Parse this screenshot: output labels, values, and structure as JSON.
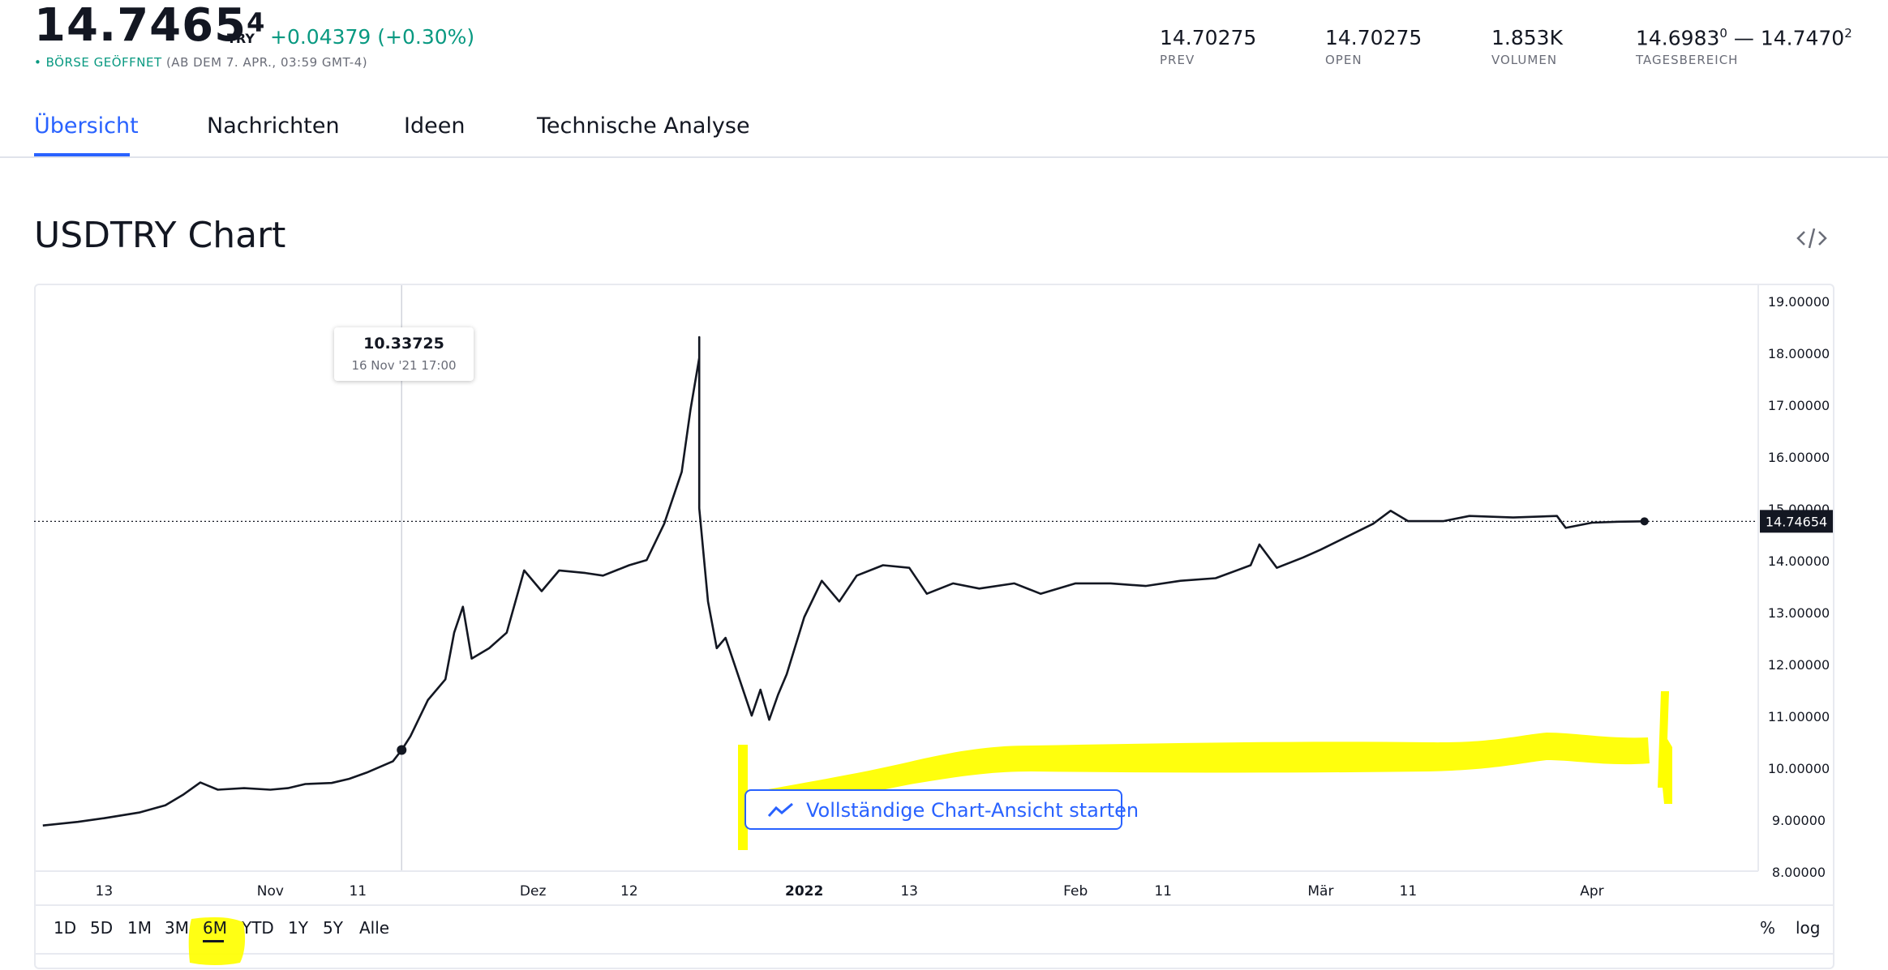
{
  "header": {
    "price_main": "14.7465",
    "price_sup": "4",
    "currency": "TRY",
    "change": "+0.04379 (+0.30%)",
    "market_status": "• BÖRSE GEÖFFNET",
    "market_time": "(AB DEM 7. APR., 03:59 GMT-4)",
    "stats": [
      {
        "value": "14.70275",
        "label": "PREV"
      },
      {
        "value": "14.70275",
        "label": "OPEN"
      },
      {
        "value": "1.853K",
        "label": "VOLUMEN"
      },
      {
        "value": "14.6983",
        "value_sup": "0",
        "value2": " — 14.7470",
        "value2_sup": "2",
        "label": "TAGESBEREICH"
      }
    ]
  },
  "tabs": [
    {
      "label": "Übersicht",
      "active": true
    },
    {
      "label": "Nachrichten"
    },
    {
      "label": "Ideen"
    },
    {
      "label": "Technische Analyse"
    }
  ],
  "chart_section": {
    "title": "USDTRY Chart",
    "embed_icon": "code-embed-icon",
    "full_chart_button": "Vollständige Chart-Ansicht starten",
    "full_chart_icon": "trend-line-icon"
  },
  "tooltip": {
    "value": "10.33725",
    "date": "16 Nov '21   17:00"
  },
  "range_buttons": [
    "1D",
    "5D",
    "1M",
    "3M",
    "6M",
    "YTD",
    "1Y",
    "5Y",
    "Alle"
  ],
  "range_active": "6M",
  "scale_buttons": [
    "%",
    "log"
  ],
  "colors": {
    "accent": "#2962ff",
    "positive": "#089981",
    "line": "#131722",
    "highlight": "#ffff00"
  },
  "chart_data": {
    "type": "line",
    "series": [
      {
        "name": "USDTRY",
        "points": [
          [
            "2021-10-06",
            8.88
          ],
          [
            "2021-10-10",
            8.95
          ],
          [
            "2021-10-13",
            9.02
          ],
          [
            "2021-10-17",
            9.13
          ],
          [
            "2021-10-20",
            9.27
          ],
          [
            "2021-10-22",
            9.47
          ],
          [
            "2021-10-24",
            9.71
          ],
          [
            "2021-10-26",
            9.57
          ],
          [
            "2021-10-29",
            9.6
          ],
          [
            "2021-11-01",
            9.57
          ],
          [
            "2021-11-03",
            9.6
          ],
          [
            "2021-11-05",
            9.68
          ],
          [
            "2021-11-08",
            9.7
          ],
          [
            "2021-11-10",
            9.78
          ],
          [
            "2021-11-12",
            9.9
          ],
          [
            "2021-11-15",
            10.12
          ],
          [
            "2021-11-16",
            10.33725
          ],
          [
            "2021-11-17",
            10.6
          ],
          [
            "2021-11-18",
            10.95
          ],
          [
            "2021-11-19",
            11.3
          ],
          [
            "2021-11-21",
            11.7
          ],
          [
            "2021-11-22",
            12.6
          ],
          [
            "2021-11-23",
            13.1
          ],
          [
            "2021-11-24",
            12.1
          ],
          [
            "2021-11-26",
            12.3
          ],
          [
            "2021-11-28",
            12.6
          ],
          [
            "2021-11-30",
            13.8
          ],
          [
            "2021-12-02",
            13.4
          ],
          [
            "2021-12-04",
            13.8
          ],
          [
            "2021-12-07",
            13.75
          ],
          [
            "2021-12-09",
            13.7
          ],
          [
            "2021-12-12",
            13.9
          ],
          [
            "2021-12-14",
            14.0
          ],
          [
            "2021-12-16",
            14.7
          ],
          [
            "2021-12-18",
            15.7
          ],
          [
            "2021-12-19",
            16.9
          ],
          [
            "2021-12-20",
            17.9
          ],
          [
            "2021-12-20",
            18.3
          ],
          [
            "2021-12-20",
            15.0
          ],
          [
            "2021-12-21",
            13.2
          ],
          [
            "2021-12-22",
            12.3
          ],
          [
            "2021-12-23",
            12.5
          ],
          [
            "2021-12-24",
            12.0
          ],
          [
            "2021-12-26",
            11.0
          ],
          [
            "2021-12-27",
            11.5
          ],
          [
            "2021-12-28",
            10.92
          ],
          [
            "2021-12-29",
            11.4
          ],
          [
            "2021-12-30",
            11.8
          ],
          [
            "2022-01-01",
            12.9
          ],
          [
            "2022-01-03",
            13.6
          ],
          [
            "2022-01-05",
            13.2
          ],
          [
            "2022-01-07",
            13.7
          ],
          [
            "2022-01-10",
            13.9
          ],
          [
            "2022-01-13",
            13.85
          ],
          [
            "2022-01-15",
            13.35
          ],
          [
            "2022-01-18",
            13.55
          ],
          [
            "2022-01-21",
            13.45
          ],
          [
            "2022-01-25",
            13.55
          ],
          [
            "2022-01-28",
            13.35
          ],
          [
            "2022-02-01",
            13.55
          ],
          [
            "2022-02-05",
            13.55
          ],
          [
            "2022-02-09",
            13.5
          ],
          [
            "2022-02-13",
            13.6
          ],
          [
            "2022-02-17",
            13.65
          ],
          [
            "2022-02-21",
            13.9
          ],
          [
            "2022-02-22",
            14.3
          ],
          [
            "2022-02-24",
            13.85
          ],
          [
            "2022-02-27",
            14.05
          ],
          [
            "2022-03-01",
            14.2
          ],
          [
            "2022-03-04",
            14.45
          ],
          [
            "2022-03-07",
            14.7
          ],
          [
            "2022-03-09",
            14.95
          ],
          [
            "2022-03-11",
            14.75
          ],
          [
            "2022-03-15",
            14.75
          ],
          [
            "2022-03-18",
            14.85
          ],
          [
            "2022-03-23",
            14.82
          ],
          [
            "2022-03-28",
            14.85
          ],
          [
            "2022-03-29",
            14.62
          ],
          [
            "2022-04-01",
            14.72
          ],
          [
            "2022-04-04",
            14.74
          ],
          [
            "2022-04-07",
            14.74654
          ]
        ]
      }
    ],
    "current_value": "14.74654",
    "x_tick_labels": [
      {
        "date": "2021-10-13",
        "label": "13",
        "bold": false
      },
      {
        "date": "2021-11-01",
        "label": "Nov",
        "bold": false
      },
      {
        "date": "2021-11-11",
        "label": "11",
        "bold": false
      },
      {
        "date": "2021-12-01",
        "label": "Dez",
        "bold": false
      },
      {
        "date": "2021-12-12",
        "label": "12",
        "bold": false
      },
      {
        "date": "2022-01-01",
        "label": "2022",
        "bold": true
      },
      {
        "date": "2022-01-13",
        "label": "13",
        "bold": false
      },
      {
        "date": "2022-02-01",
        "label": "Feb",
        "bold": false
      },
      {
        "date": "2022-02-11",
        "label": "11",
        "bold": false
      },
      {
        "date": "2022-03-01",
        "label": "Mär",
        "bold": false
      },
      {
        "date": "2022-03-11",
        "label": "11",
        "bold": false
      },
      {
        "date": "2022-04-01",
        "label": "Apr",
        "bold": false
      }
    ],
    "y_tick_labels": [
      "8.00000",
      "9.00000",
      "10.00000",
      "11.00000",
      "12.00000",
      "13.00000",
      "14.00000",
      "15.00000",
      "16.00000",
      "17.00000",
      "18.00000",
      "19.00000"
    ],
    "ylim": [
      8.0,
      19.3
    ],
    "xlim": [
      "2021-10-05",
      "2022-04-20"
    ],
    "y_axis_side": "right",
    "grid": false
  }
}
